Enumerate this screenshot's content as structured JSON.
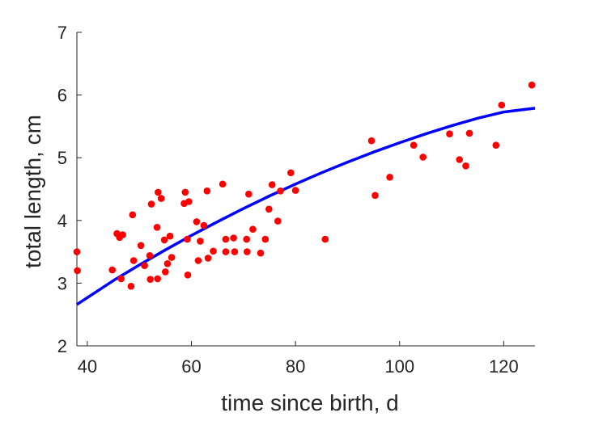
{
  "chart_data": {
    "type": "scatter",
    "xlabel": "time since birth, d",
    "ylabel": "total length, cm",
    "xlim": [
      38,
      126
    ],
    "ylim": [
      2,
      7
    ],
    "xticks": [
      40,
      60,
      80,
      100,
      120
    ],
    "yticks": [
      2,
      3,
      4,
      5,
      6,
      7
    ],
    "grid": false,
    "legend": "none",
    "series": [
      {
        "kind": "points",
        "color": "#ff0000",
        "points": [
          [
            38,
            3.5
          ],
          [
            38.1,
            3.2
          ],
          [
            44.8,
            3.21
          ],
          [
            45.7,
            3.79
          ],
          [
            46.2,
            3.73
          ],
          [
            46.5,
            3.07
          ],
          [
            46.8,
            3.77
          ],
          [
            48.4,
            2.95
          ],
          [
            48.7,
            4.09
          ],
          [
            48.9,
            3.36
          ],
          [
            50.3,
            3.6
          ],
          [
            51,
            3.28
          ],
          [
            52,
            3.44
          ],
          [
            52.1,
            3.06
          ],
          [
            52.3,
            4.26
          ],
          [
            53.4,
            3.89
          ],
          [
            53.5,
            3.07
          ],
          [
            53.6,
            4.45
          ],
          [
            54.2,
            4.35
          ],
          [
            54.8,
            3.69
          ],
          [
            55,
            3.18
          ],
          [
            55.4,
            3.31
          ],
          [
            55.9,
            3.75
          ],
          [
            56.2,
            3.41
          ],
          [
            58.6,
            4.27
          ],
          [
            58.8,
            4.45
          ],
          [
            59.2,
            3.7
          ],
          [
            59.3,
            3.13
          ],
          [
            59.5,
            4.3
          ],
          [
            61,
            3.98
          ],
          [
            61.3,
            3.36
          ],
          [
            61.7,
            3.67
          ],
          [
            62.4,
            3.92
          ],
          [
            63,
            4.47
          ],
          [
            63.2,
            3.4
          ],
          [
            64.2,
            3.51
          ],
          [
            66,
            4.58
          ],
          [
            66.6,
            3.7
          ],
          [
            66.6,
            3.5
          ],
          [
            68.1,
            3.72
          ],
          [
            68.3,
            3.5
          ],
          [
            70.6,
            3.7
          ],
          [
            70.7,
            3.5
          ],
          [
            71,
            4.42
          ],
          [
            71.8,
            3.86
          ],
          [
            73.3,
            3.48
          ],
          [
            74.2,
            3.7
          ],
          [
            74.9,
            4.18
          ],
          [
            75.5,
            4.57
          ],
          [
            76.6,
            3.99
          ],
          [
            77.1,
            4.47
          ],
          [
            79.1,
            4.76
          ],
          [
            80,
            4.48
          ],
          [
            85.7,
            3.7
          ],
          [
            94.6,
            5.27
          ],
          [
            95.3,
            4.4
          ],
          [
            98.1,
            4.69
          ],
          [
            102.7,
            5.2
          ],
          [
            104.5,
            5.01
          ],
          [
            109.6,
            5.38
          ],
          [
            111.5,
            4.97
          ],
          [
            112.7,
            4.87
          ],
          [
            113.4,
            5.39
          ],
          [
            118.5,
            5.2
          ],
          [
            119.6,
            5.84
          ],
          [
            125.4,
            6.16
          ]
        ]
      },
      {
        "kind": "line",
        "color": "#0000ff",
        "x": [
          38,
          45,
          50,
          55,
          60,
          65,
          70,
          75,
          80,
          85,
          90,
          95,
          100,
          105,
          110,
          115,
          120,
          126
        ],
        "y": [
          2.66,
          3.04,
          3.29,
          3.53,
          3.76,
          3.98,
          4.19,
          4.39,
          4.58,
          4.76,
          4.93,
          5.09,
          5.24,
          5.38,
          5.51,
          5.63,
          5.73,
          5.79
        ]
      }
    ]
  }
}
